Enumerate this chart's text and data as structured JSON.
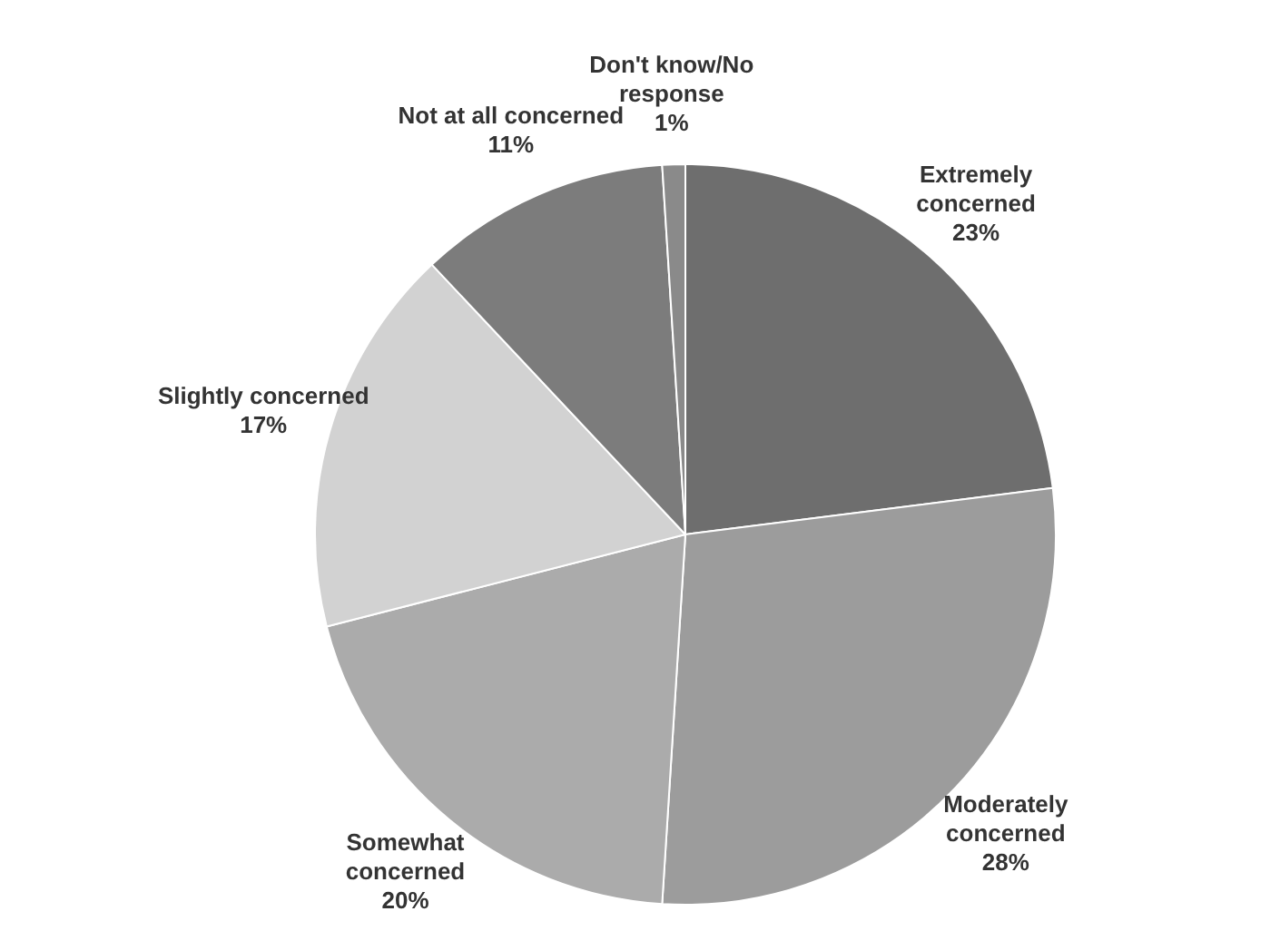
{
  "chart_data": {
    "type": "pie",
    "categories": [
      "Extremely concerned",
      "Moderately concerned",
      "Somewhat concerned",
      "Slightly concerned",
      "Not at all concerned",
      "Don't know/No response"
    ],
    "values": [
      23,
      28,
      20,
      17,
      11,
      1
    ],
    "value_labels": [
      "23%",
      "28%",
      "20%",
      "17%",
      "11%",
      "1%"
    ],
    "colors": [
      "#6e6e6e",
      "#9c9c9c",
      "#ababab",
      "#d2d2d2",
      "#7c7c7c",
      "#8a8a8a"
    ],
    "legend": false
  }
}
